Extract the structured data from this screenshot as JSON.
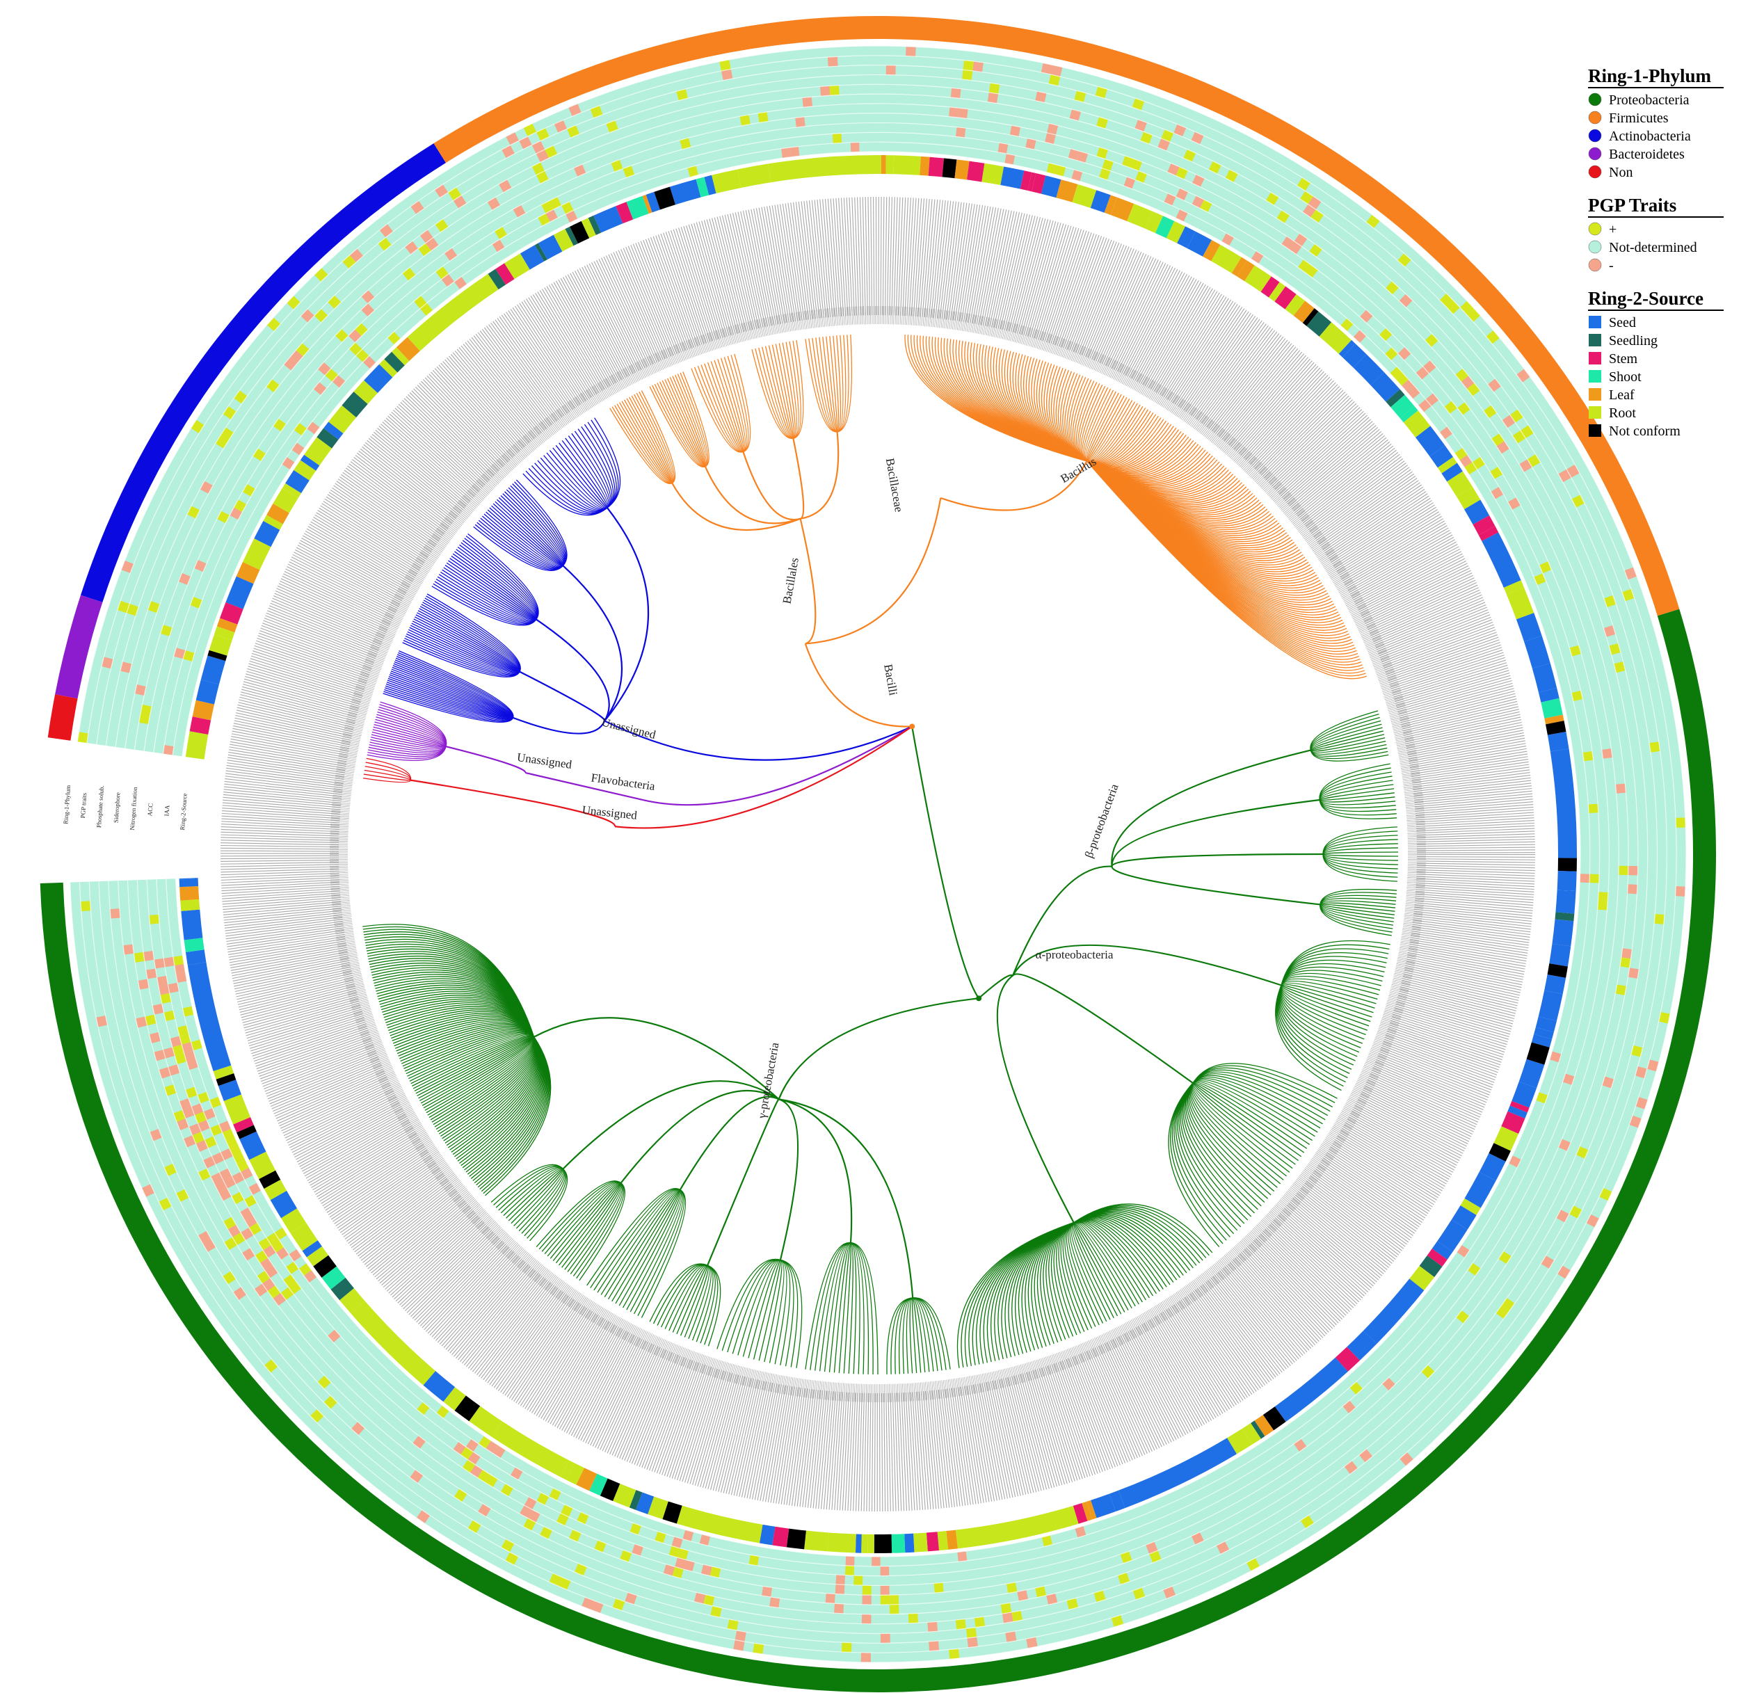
{
  "legend": [
    {
      "title": "Ring-1-Phylum",
      "items": [
        {
          "label": "Proteobacteria",
          "color": "#0b7a0b"
        },
        {
          "label": "Firmicutes",
          "color": "#f7811f"
        },
        {
          "label": "Actinobacteria",
          "color": "#0a0ae0"
        },
        {
          "label": "Bacteroidetes",
          "color": "#8e1ccf"
        },
        {
          "label": "Non",
          "color": "#e8141c"
        }
      ]
    },
    {
      "title": "PGP Traits",
      "items": [
        {
          "label": "+",
          "color": "#d6e81c"
        },
        {
          "label": "Not-determined",
          "color": "#b4f0dc"
        },
        {
          "label": "-",
          "color": "#f4a58c"
        }
      ]
    },
    {
      "title": "Ring-2-Source",
      "items": [
        {
          "label": "Seed",
          "color": "#1f6fe6"
        },
        {
          "label": "Seedling",
          "color": "#1d6b5e"
        },
        {
          "label": "Stem",
          "color": "#e8186d"
        },
        {
          "label": "Shoot",
          "color": "#1de8a8"
        },
        {
          "label": "Leaf",
          "color": "#f09a1c"
        },
        {
          "label": "Root",
          "color": "#c8e61c"
        },
        {
          "label": "Not conform",
          "color": "#000000"
        }
      ]
    }
  ],
  "ring_labels": [
    "Ring-1-Phylum",
    "PGP traits",
    "Phosphate solub.",
    "Siderophore",
    "Nitrogen fixation",
    "ACC",
    "IAA",
    "Ring-2-Source"
  ],
  "clade_labels": [
    "Bacilli",
    "Bacillales",
    "Bacillaceae",
    "Bacillus",
    "Unassigned",
    "Unassigned",
    "Flavobacteria",
    "Unassigned",
    "β-proteobacteria",
    "α-proteobacteria",
    "γ-proteobacteria"
  ]
}
